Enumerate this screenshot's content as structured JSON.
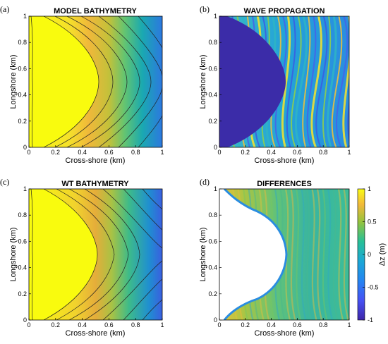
{
  "chart_data": [
    {
      "type": "heatmap",
      "panel_label": "(a)",
      "title": "MODEL BATHYMETRY",
      "xlabel": "Cross-shore (km)",
      "ylabel": "Longshore (km)",
      "xlim": [
        0,
        1
      ],
      "ylim": [
        0,
        1
      ],
      "xticks": [
        "0",
        "0.2",
        "0.4",
        "0.6",
        "0.8",
        "1"
      ],
      "yticks": [
        "0",
        "0.2",
        "0.4",
        "0.6",
        "0.8",
        "1"
      ],
      "content": "depth contours of a parabolic bathymetry"
    },
    {
      "type": "heatmap",
      "panel_label": "(b)",
      "title": "WAVE PROPAGATION",
      "xlabel": "Cross-shore (km)",
      "ylabel": "Longshore (km)",
      "xlim": [
        0,
        1
      ],
      "ylim": [
        0,
        1
      ],
      "xticks": [
        "0",
        "0.2",
        "0.4",
        "0.6",
        "0.8",
        "1"
      ],
      "yticks": [
        "0",
        "0.2",
        "0.4",
        "0.6",
        "0.8",
        "1"
      ],
      "content": "wave crests over the bathymetry"
    },
    {
      "type": "heatmap",
      "panel_label": "(c)",
      "title": "WT BATHYMETRY",
      "xlabel": "Cross-shore (km)",
      "ylabel": "Longshore (km)",
      "xlim": [
        0,
        1
      ],
      "ylim": [
        0,
        1
      ],
      "xticks": [
        "0",
        "0.2",
        "0.4",
        "0.6",
        "0.8",
        "1"
      ],
      "yticks": [
        "0",
        "0.2",
        "0.4",
        "0.6",
        "0.8",
        "1"
      ],
      "content": "retrieved depth contours"
    },
    {
      "type": "heatmap",
      "panel_label": "(d)",
      "title": "DIFFERENCES",
      "xlabel": "Cross-shore (km)",
      "ylabel": "Longshore (km)",
      "xlim": [
        0,
        1
      ],
      "ylim": [
        0,
        1
      ],
      "xticks": [
        "0",
        "0.2",
        "0.4",
        "0.6",
        "0.8",
        "1"
      ],
      "yticks": [
        "0",
        "0.2",
        "0.4",
        "0.6",
        "0.8",
        "1"
      ],
      "colorbar": {
        "label": "Δz (m)",
        "range": [
          -1,
          1
        ],
        "ticks": [
          "1",
          "0.5",
          "0",
          "-0.5",
          "-1"
        ],
        "colormap": "parula"
      }
    }
  ]
}
